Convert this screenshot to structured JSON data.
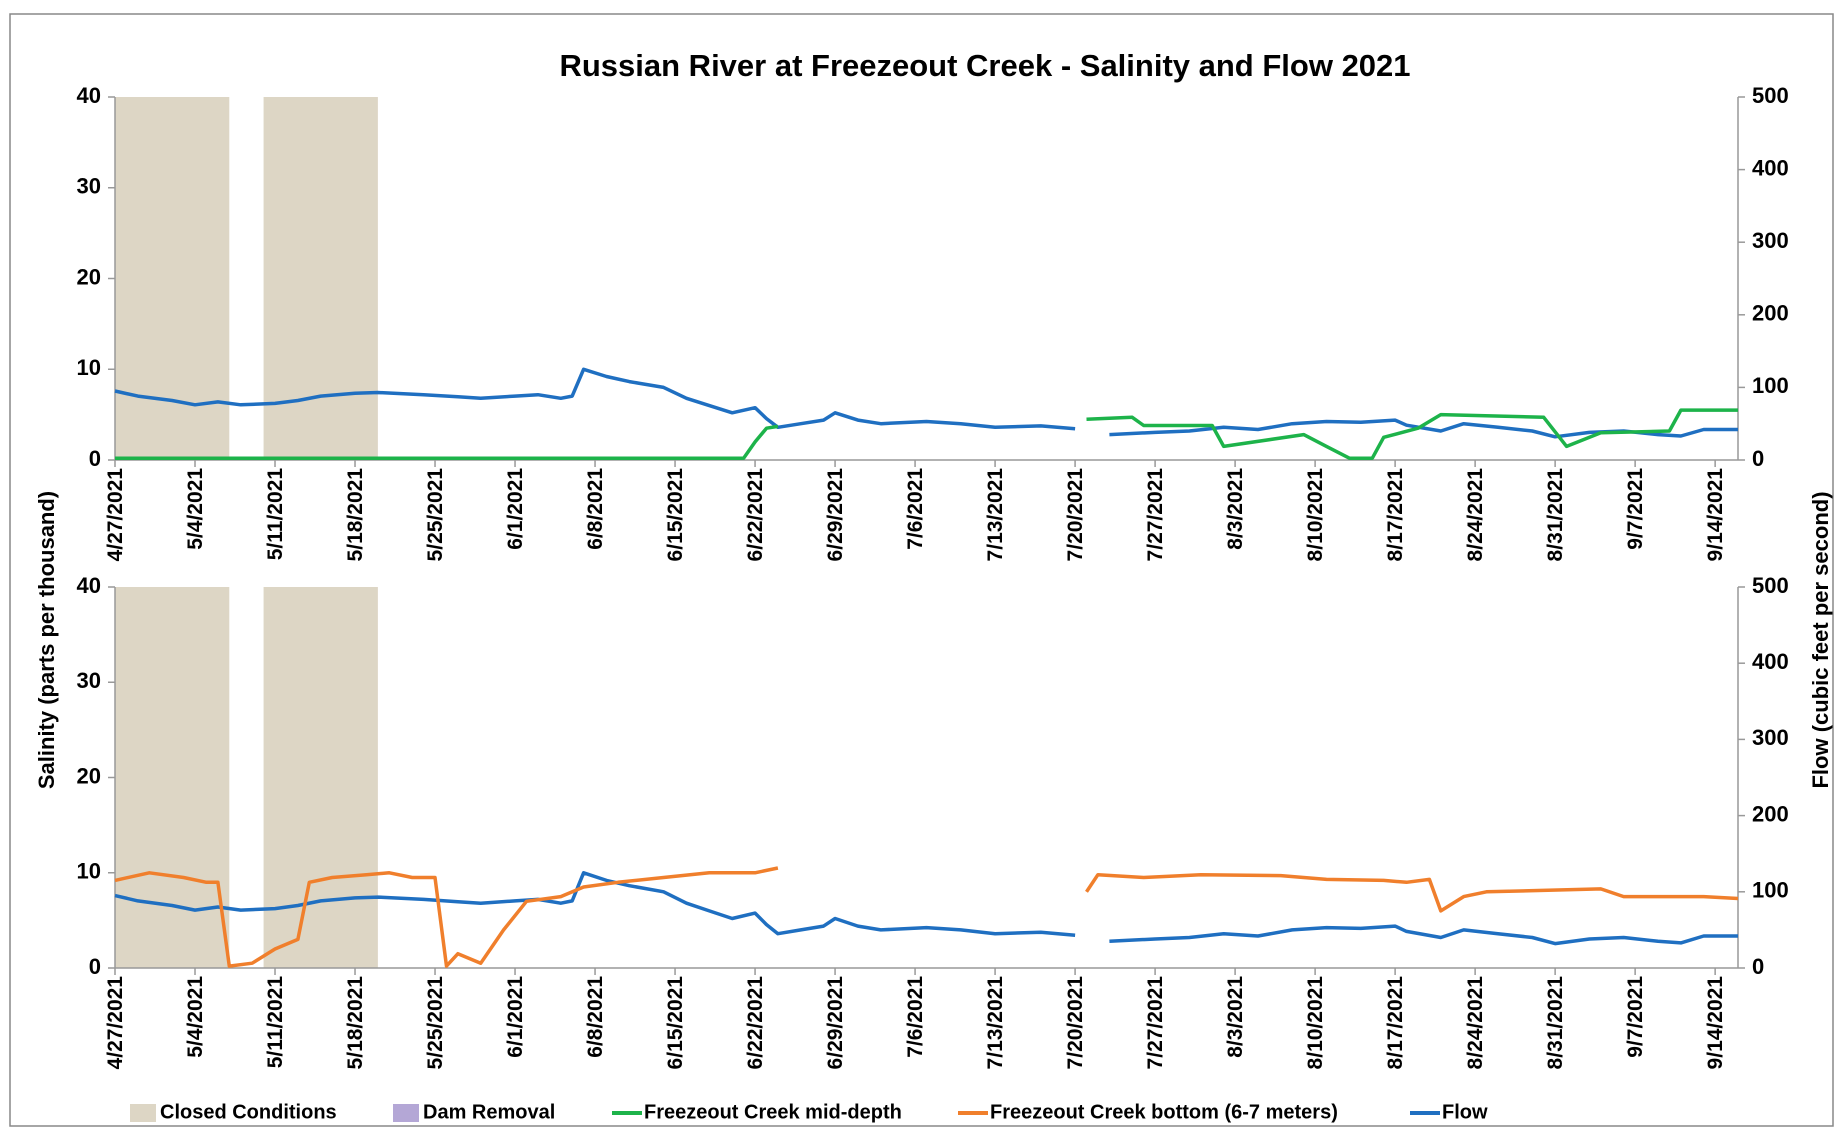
{
  "chart_data": [
    {
      "type": "line",
      "title": "Russian River at Freezeout Creek - Salinity and Flow 2021",
      "ylabel": "Salinity (parts per thousand)",
      "y2label": "Flow (cubic feet per second)",
      "xlim": [
        "4/27/2021",
        "9/16/2021"
      ],
      "xticks": [
        "4/27/2021",
        "5/4/2021",
        "5/11/2021",
        "5/18/2021",
        "5/25/2021",
        "6/1/2021",
        "6/8/2021",
        "6/15/2021",
        "6/22/2021",
        "6/29/2021",
        "7/6/2021",
        "7/13/2021",
        "7/20/2021",
        "7/27/2021",
        "8/3/2021",
        "8/10/2021",
        "8/17/2021",
        "8/24/2021",
        "8/31/2021",
        "9/7/2021",
        "9/14/2021"
      ],
      "ylim": [
        0,
        40
      ],
      "yticks": [
        0,
        10,
        20,
        30,
        40
      ],
      "y2lim": [
        0,
        500
      ],
      "y2ticks": [
        0,
        100,
        200,
        300,
        400,
        500
      ],
      "shading": {
        "name": "Closed Conditions",
        "color": "#ddd6c5",
        "periods": [
          [
            "4/27/2021",
            "5/7/2021"
          ],
          [
            "5/10/2021",
            "5/20/2021"
          ]
        ]
      },
      "dam_removal": {
        "name": "Dam Removal",
        "color": "#b4a7d6"
      },
      "series": [
        {
          "name": "Flow",
          "color": "#1f6fc1",
          "axis": "y2",
          "x": [
            "4/27/2021",
            "4/29/2021",
            "5/2/2021",
            "5/4/2021",
            "5/6/2021",
            "5/8/2021",
            "5/11/2021",
            "5/13/2021",
            "5/15/2021",
            "5/18/2021",
            "5/20/2021",
            "5/24/2021",
            "5/27/2021",
            "5/29/2021",
            "6/1/2021",
            "6/3/2021",
            "6/5/2021",
            "6/6/2021",
            "6/7/2021",
            "6/9/2021",
            "6/11/2021",
            "6/14/2021",
            "6/16/2021",
            "6/18/2021",
            "6/20/2021",
            "6/22/2021",
            "6/23/2021",
            "6/24/2021",
            "6/26/2021",
            "6/28/2021",
            "6/29/2021",
            "7/1/2021",
            "7/3/2021",
            "7/7/2021",
            "7/10/2021",
            "7/13/2021",
            "7/17/2021",
            "7/20/2021",
            "7/21/2021",
            "7/23/2021",
            "7/27/2021",
            "7/30/2021",
            "8/2/2021",
            "8/5/2021",
            "8/8/2021",
            "8/11/2021",
            "8/14/2021",
            "8/17/2021",
            "8/18/2021",
            "8/21/2021",
            "8/23/2021",
            "8/26/2021",
            "8/29/2021",
            "8/31/2021",
            "9/3/2021",
            "9/6/2021",
            "9/9/2021",
            "9/11/2021",
            "9/13/2021",
            "9/16/2021"
          ],
          "values": [
            95,
            88,
            82,
            76,
            80,
            76,
            78,
            82,
            88,
            92,
            93,
            90,
            87,
            85,
            88,
            90,
            85,
            88,
            125,
            115,
            108,
            100,
            85,
            75,
            65,
            72,
            57,
            45,
            50,
            55,
            65,
            55,
            50,
            53,
            50,
            45,
            47,
            43,
            null,
            35,
            38,
            40,
            45,
            42,
            50,
            53,
            52,
            55,
            48,
            40,
            50,
            45,
            40,
            32,
            38,
            40,
            35,
            33,
            42,
            42
          ]
        },
        {
          "name": "Freezeout Creek mid-depth",
          "color": "#1db34a",
          "x": [
            "4/27/2021",
            "6/21/2021",
            "6/22/2021",
            "6/23/2021",
            "6/24/2021",
            "7/10/2021",
            "7/21/2021",
            "7/25/2021",
            "7/26/2021",
            "8/1/2021",
            "8/2/2021",
            "8/9/2021",
            "8/11/2021",
            "8/13/2021",
            "8/15/2021",
            "8/16/2021",
            "8/19/2021",
            "8/21/2021",
            "8/30/2021",
            "9/1/2021",
            "9/4/2021",
            "9/10/2021",
            "9/11/2021",
            "9/16/2021"
          ],
          "values": [
            0.2,
            0.2,
            2,
            3.5,
            3.7,
            null,
            4.5,
            4.7,
            3.8,
            3.8,
            1.5,
            2.8,
            1.5,
            0.2,
            0.2,
            2.5,
            3.5,
            5,
            4.7,
            1.5,
            3,
            3.2,
            5.5,
            5.5
          ]
        }
      ]
    },
    {
      "type": "line",
      "xlim": [
        "4/27/2021",
        "9/16/2021"
      ],
      "xticks": [
        "4/27/2021",
        "5/4/2021",
        "5/11/2021",
        "5/18/2021",
        "5/25/2021",
        "6/1/2021",
        "6/8/2021",
        "6/15/2021",
        "6/22/2021",
        "6/29/2021",
        "7/6/2021",
        "7/13/2021",
        "7/20/2021",
        "7/27/2021",
        "8/3/2021",
        "8/10/2021",
        "8/17/2021",
        "8/24/2021",
        "8/31/2021",
        "9/7/2021",
        "9/14/2021"
      ],
      "ylim": [
        0,
        40
      ],
      "yticks": [
        0,
        10,
        20,
        30,
        40
      ],
      "y2lim": [
        0,
        500
      ],
      "y2ticks": [
        0,
        100,
        200,
        300,
        400,
        500
      ],
      "shading": {
        "color": "#ddd6c5",
        "periods": [
          [
            "4/27/2021",
            "5/7/2021"
          ],
          [
            "5/10/2021",
            "5/20/2021"
          ]
        ]
      },
      "series": [
        {
          "name": "Flow",
          "color": "#1f6fc1",
          "axis": "y2",
          "x": [
            "4/27/2021",
            "4/29/2021",
            "5/2/2021",
            "5/4/2021",
            "5/6/2021",
            "5/8/2021",
            "5/11/2021",
            "5/13/2021",
            "5/15/2021",
            "5/18/2021",
            "5/20/2021",
            "5/24/2021",
            "5/27/2021",
            "5/29/2021",
            "6/1/2021",
            "6/3/2021",
            "6/5/2021",
            "6/6/2021",
            "6/7/2021",
            "6/9/2021",
            "6/11/2021",
            "6/14/2021",
            "6/16/2021",
            "6/18/2021",
            "6/20/2021",
            "6/22/2021",
            "6/23/2021",
            "6/24/2021",
            "6/26/2021",
            "6/28/2021",
            "6/29/2021",
            "7/1/2021",
            "7/3/2021",
            "7/7/2021",
            "7/10/2021",
            "7/13/2021",
            "7/17/2021",
            "7/20/2021",
            "7/21/2021",
            "7/23/2021",
            "7/27/2021",
            "7/30/2021",
            "8/2/2021",
            "8/5/2021",
            "8/8/2021",
            "8/11/2021",
            "8/14/2021",
            "8/17/2021",
            "8/18/2021",
            "8/21/2021",
            "8/23/2021",
            "8/26/2021",
            "8/29/2021",
            "8/31/2021",
            "9/3/2021",
            "9/6/2021",
            "9/9/2021",
            "9/11/2021",
            "9/13/2021",
            "9/16/2021"
          ],
          "values": [
            95,
            88,
            82,
            76,
            80,
            76,
            78,
            82,
            88,
            92,
            93,
            90,
            87,
            85,
            88,
            90,
            85,
            88,
            125,
            115,
            108,
            100,
            85,
            75,
            65,
            72,
            57,
            45,
            50,
            55,
            65,
            55,
            50,
            53,
            50,
            45,
            47,
            43,
            null,
            35,
            38,
            40,
            45,
            42,
            50,
            53,
            52,
            55,
            48,
            40,
            50,
            45,
            40,
            32,
            38,
            40,
            35,
            33,
            42,
            42
          ]
        },
        {
          "name": "Freezeout Creek bottom (6-7 meters)",
          "color": "#f07f2c",
          "x": [
            "4/27/2021",
            "4/30/2021",
            "5/3/2021",
            "5/5/2021",
            "5/6/2021",
            "5/7/2021",
            "5/9/2021",
            "5/11/2021",
            "5/13/2021",
            "5/14/2021",
            "5/16/2021",
            "5/19/2021",
            "5/21/2021",
            "5/23/2021",
            "5/25/2021",
            "5/26/2021",
            "5/27/2021",
            "5/29/2021",
            "5/31/2021",
            "6/2/2021",
            "6/5/2021",
            "6/7/2021",
            "6/10/2021",
            "6/14/2021",
            "6/18/2021",
            "6/22/2021",
            "6/24/2021",
            "7/10/2021",
            "7/21/2021",
            "7/22/2021",
            "7/26/2021",
            "7/31/2021",
            "8/7/2021",
            "8/11/2021",
            "8/16/2021",
            "8/18/2021",
            "8/20/2021",
            "8/21/2021",
            "8/23/2021",
            "8/25/2021",
            "9/4/2021",
            "9/6/2021",
            "9/13/2021",
            "9/16/2021"
          ],
          "values": [
            9.2,
            10,
            9.5,
            9,
            9,
            0.2,
            0.5,
            2,
            3,
            9,
            9.5,
            9.8,
            10,
            9.5,
            9.5,
            0.2,
            1.5,
            0.5,
            4,
            7,
            7.5,
            8.5,
            9,
            9.5,
            10,
            10,
            10.5,
            null,
            8,
            9.8,
            9.5,
            9.8,
            9.7,
            9.3,
            9.2,
            9,
            9.3,
            6,
            7.5,
            8,
            8.3,
            7.5,
            7.5,
            7.3
          ]
        }
      ]
    }
  ]
}
